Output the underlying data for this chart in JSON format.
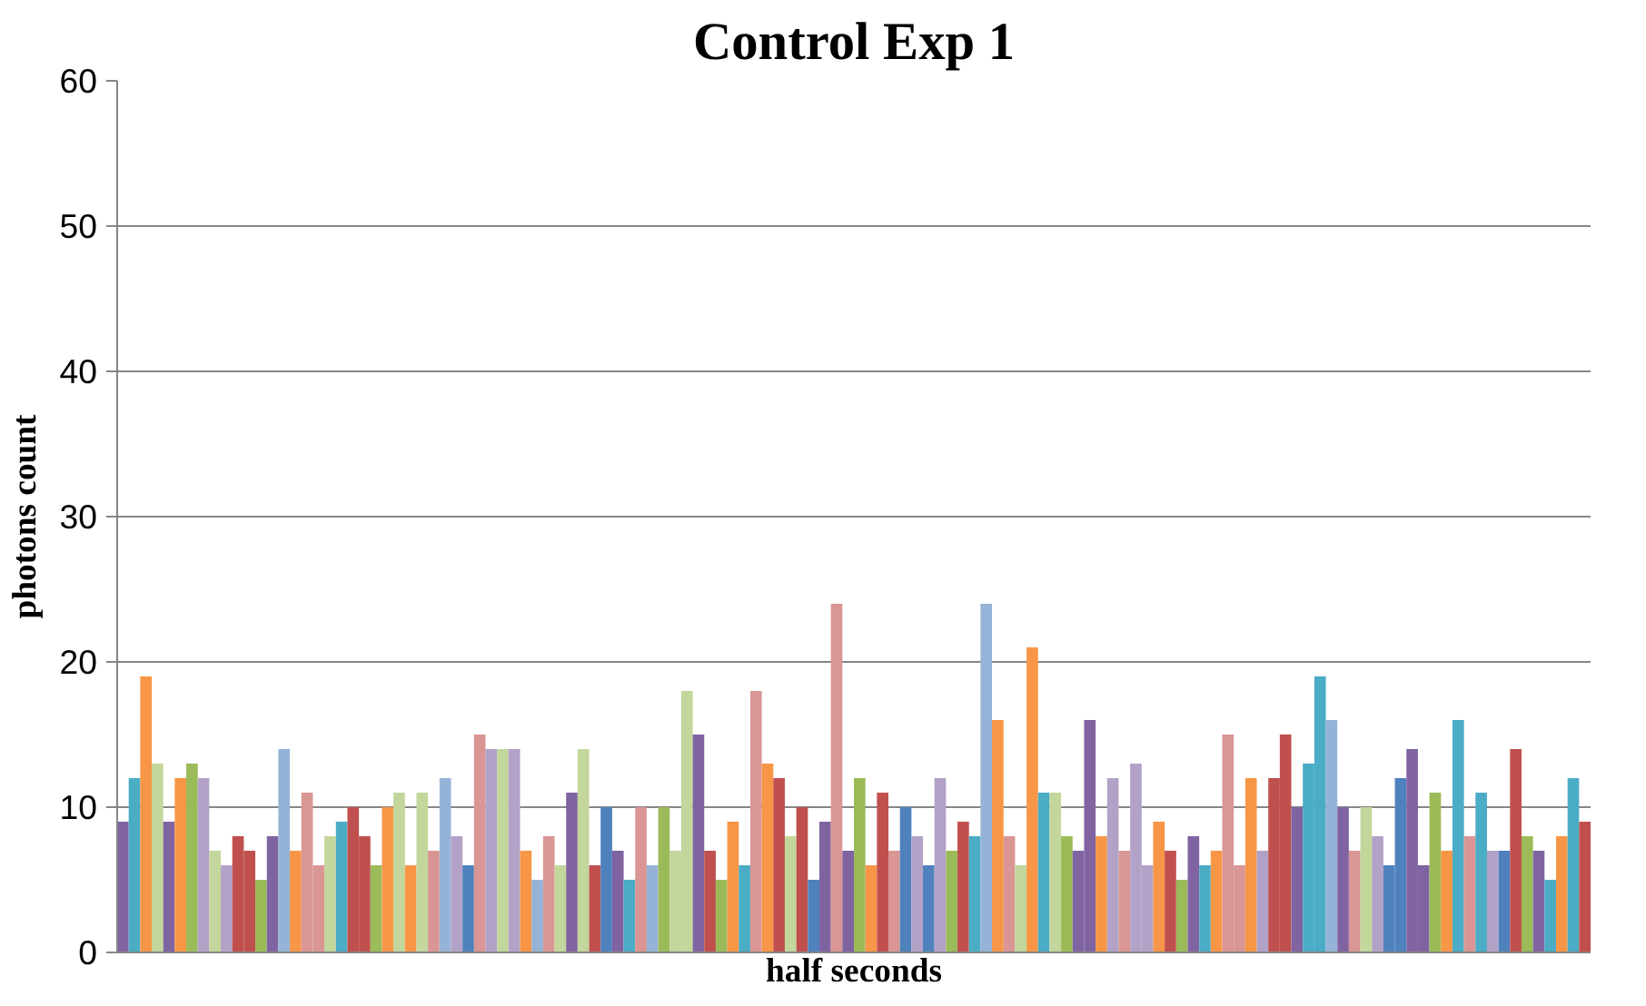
{
  "chart_data": {
    "type": "bar",
    "title": "Control Exp 1",
    "xlabel": "half seconds",
    "ylabel": "photons count",
    "categories": [
      null,
      null,
      null,
      null,
      null,
      null,
      null,
      null,
      null,
      null,
      null,
      null,
      null,
      null,
      null,
      null,
      null,
      null,
      null,
      null,
      null,
      null,
      null,
      null,
      null,
      null,
      null,
      null,
      null,
      null,
      null,
      null,
      null,
      null,
      null,
      null,
      null,
      null,
      null,
      null,
      null,
      null,
      null,
      null,
      null,
      null,
      null,
      null,
      null,
      null,
      null,
      null,
      null,
      null,
      null,
      null,
      null,
      null,
      null,
      null,
      null,
      null,
      null,
      null,
      null,
      null,
      null,
      null,
      null,
      null,
      null,
      null,
      null,
      null,
      null,
      null,
      null,
      null,
      null,
      null,
      null,
      null,
      null,
      null,
      null,
      null,
      null,
      null,
      null,
      null,
      null,
      null,
      null,
      null,
      null,
      null,
      null,
      null,
      null,
      null,
      null,
      null,
      null,
      null,
      null,
      null,
      null,
      null,
      null,
      null,
      null,
      null,
      null,
      null,
      null,
      null,
      null,
      null,
      null,
      null,
      null,
      null,
      null,
      null,
      null,
      null,
      null,
      null
    ],
    "values": [
      9,
      12,
      19,
      13,
      9,
      12,
      13,
      12,
      7,
      6,
      8,
      7,
      5,
      8,
      14,
      7,
      11,
      6,
      8,
      9,
      10,
      8,
      6,
      10,
      11,
      6,
      11,
      7,
      12,
      8,
      6,
      15,
      14,
      14,
      14,
      7,
      5,
      8,
      6,
      11,
      14,
      6,
      10,
      7,
      5,
      10,
      6,
      10,
      7,
      18,
      15,
      7,
      5,
      9,
      6,
      18,
      13,
      12,
      8,
      10,
      5,
      9,
      24,
      7,
      12,
      6,
      11,
      7,
      10,
      8,
      6,
      12,
      7,
      9,
      8,
      24,
      16,
      8,
      6,
      21,
      11,
      11,
      8,
      7,
      16,
      8,
      12,
      7,
      13,
      6,
      9,
      7,
      5,
      8,
      6,
      7,
      15,
      6,
      12,
      7,
      12,
      15,
      10,
      13,
      19,
      16,
      10,
      7,
      10,
      8,
      6,
      12,
      14,
      6,
      11,
      7,
      16,
      8,
      11,
      7,
      7,
      14,
      8,
      7,
      5,
      8,
      12,
      9
    ],
    "colors": [
      "#8064a2",
      "#4bacc6",
      "#f79646",
      "#c3d69b",
      "#8064a2",
      "#f79646",
      "#9bbb59",
      "#b2a2c7",
      "#c3d69b",
      "#b2a2c7",
      "#c0504d",
      "#c0504d",
      "#9bbb59",
      "#8064a2",
      "#95b3d7",
      "#f79646",
      "#d99694",
      "#d99694",
      "#c3d69b",
      "#4bacc6",
      "#c0504d",
      "#c0504d",
      "#9bbb59",
      "#f79646",
      "#c3d69b",
      "#f79646",
      "#c3d69b",
      "#d99694",
      "#95b3d7",
      "#b2a2c7",
      "#4f81bd",
      "#d99694",
      "#b2a2c7",
      "#c3d69b",
      "#b2a2c7",
      "#f79646",
      "#95b3d7",
      "#d99694",
      "#c3d69b",
      "#8064a2",
      "#c3d69b",
      "#c0504d",
      "#4f81bd",
      "#8064a2",
      "#4bacc6",
      "#d99694",
      "#95b3d7",
      "#9bbb59",
      "#c3d69b",
      "#c3d69b",
      "#8064a2",
      "#c0504d",
      "#9bbb59",
      "#f79646",
      "#4bacc6",
      "#d99694",
      "#f79646",
      "#c0504d",
      "#c3d69b",
      "#c0504d",
      "#4f81bd",
      "#8064a2",
      "#d99694",
      "#8064a2",
      "#9bbb59",
      "#f79646",
      "#c0504d",
      "#d99694",
      "#4f81bd",
      "#b2a2c7",
      "#4f81bd",
      "#b2a2c7",
      "#9bbb59",
      "#c0504d",
      "#4bacc6",
      "#95b3d7",
      "#f79646",
      "#d99694",
      "#c3d69b",
      "#f79646",
      "#4bacc6",
      "#c3d69b",
      "#9bbb59",
      "#8064a2",
      "#8064a2",
      "#f79646",
      "#b2a2c7",
      "#d99694",
      "#b2a2c7",
      "#b2a2c7",
      "#f79646",
      "#c0504d",
      "#9bbb59",
      "#8064a2",
      "#4bacc6",
      "#f79646",
      "#d99694",
      "#d99694",
      "#f79646",
      "#b2a2c7",
      "#c0504d",
      "#c0504d",
      "#8064a2",
      "#4bacc6",
      "#4bacc6",
      "#95b3d7",
      "#8064a2",
      "#d99694",
      "#c3d69b",
      "#b2a2c7",
      "#4f81bd",
      "#4f81bd",
      "#8064a2",
      "#8064a2",
      "#9bbb59",
      "#f79646",
      "#4bacc6",
      "#d99694",
      "#4bacc6",
      "#b2a2c7",
      "#4f81bd",
      "#c0504d",
      "#9bbb59",
      "#8064a2",
      "#4bacc6",
      "#f79646",
      "#4bacc6",
      "#c0504d"
    ],
    "ylim": [
      0,
      60
    ],
    "yticks": [
      0,
      10,
      20,
      30,
      40,
      50,
      60
    ],
    "grid": "y"
  }
}
